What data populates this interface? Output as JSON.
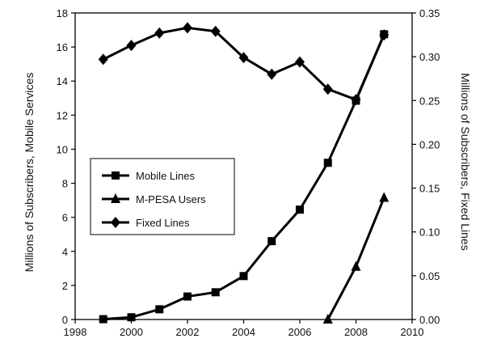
{
  "chart_data": {
    "type": "line",
    "xlim": [
      1998,
      2010
    ],
    "x_ticks": [
      1998,
      2000,
      2002,
      2004,
      2006,
      2008,
      2010
    ],
    "ylabel_left": "Millions of Subscribers, Mobile Services",
    "ylabel_right": "Millions of Subscribers, Fixed Lines",
    "ylim_left": [
      0,
      18
    ],
    "ylim_right": [
      0,
      0.35
    ],
    "y_ticks_left": [
      0,
      2,
      4,
      6,
      8,
      10,
      12,
      14,
      16,
      18
    ],
    "y_ticks_right": [
      "0.00",
      "0.05",
      "0.10",
      "0.15",
      "0.20",
      "0.25",
      "0.30",
      "0.35"
    ],
    "legend_position": "center-left",
    "grid": false,
    "series": [
      {
        "name": "Mobile Lines",
        "axis": "left",
        "marker": "square",
        "color": "#000000",
        "x": [
          1999,
          2000,
          2001,
          2002,
          2003,
          2004,
          2005,
          2006,
          2007,
          2008,
          2009
        ],
        "values": [
          0.02,
          0.13,
          0.6,
          1.35,
          1.6,
          2.55,
          4.6,
          6.45,
          9.2,
          12.85,
          16.75
        ]
      },
      {
        "name": "M-PESA Users",
        "axis": "left",
        "marker": "triangle",
        "color": "#000000",
        "x": [
          2007,
          2008,
          2009
        ],
        "values": [
          0.0,
          3.1,
          7.15
        ]
      },
      {
        "name": "Fixed Lines",
        "axis": "right",
        "marker": "diamond",
        "color": "#000000",
        "x": [
          1999,
          2000,
          2001,
          2002,
          2003,
          2004,
          2005,
          2006,
          2007,
          2008,
          2009
        ],
        "values": [
          0.297,
          0.313,
          0.327,
          0.333,
          0.329,
          0.299,
          0.28,
          0.294,
          0.263,
          0.251,
          0.325
        ]
      }
    ]
  }
}
